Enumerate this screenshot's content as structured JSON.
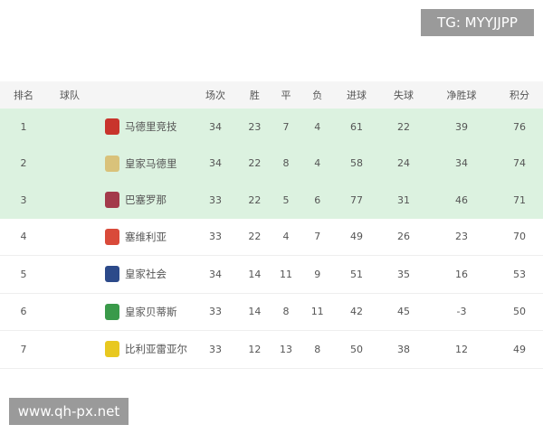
{
  "watermarks": {
    "top": "TG: MYYJJPP",
    "bottom": "www.qh-px.net"
  },
  "headers": [
    "排名",
    "球队",
    "场次",
    "胜",
    "平",
    "负",
    "进球",
    "失球",
    "净胜球",
    "积分"
  ],
  "rows": [
    {
      "rank": "1",
      "team": "马德里竞技",
      "icon": "atletico-madrid-crest",
      "color": "#c8342c",
      "played": "34",
      "w": "23",
      "d": "7",
      "l": "4",
      "gf": "61",
      "ga": "22",
      "gd": "39",
      "pts": "76",
      "highlight": true
    },
    {
      "rank": "2",
      "team": "皇家马德里",
      "icon": "real-madrid-crest",
      "color": "#d9c27a",
      "played": "34",
      "w": "22",
      "d": "8",
      "l": "4",
      "gf": "58",
      "ga": "24",
      "gd": "34",
      "pts": "74",
      "highlight": true
    },
    {
      "rank": "3",
      "team": "巴塞罗那",
      "icon": "barcelona-crest",
      "color": "#a33a4a",
      "played": "33",
      "w": "22",
      "d": "5",
      "l": "6",
      "gf": "77",
      "ga": "31",
      "gd": "46",
      "pts": "71",
      "highlight": true
    },
    {
      "rank": "4",
      "team": "塞维利亚",
      "icon": "sevilla-crest",
      "color": "#d94a3a",
      "played": "33",
      "w": "22",
      "d": "4",
      "l": "7",
      "gf": "49",
      "ga": "26",
      "gd": "23",
      "pts": "70",
      "highlight": false
    },
    {
      "rank": "5",
      "team": "皇家社会",
      "icon": "real-sociedad-crest",
      "color": "#2c4a8a",
      "played": "34",
      "w": "14",
      "d": "11",
      "l": "9",
      "gf": "51",
      "ga": "35",
      "gd": "16",
      "pts": "53",
      "highlight": false
    },
    {
      "rank": "6",
      "team": "皇家贝蒂斯",
      "icon": "real-betis-crest",
      "color": "#3a9a4a",
      "played": "33",
      "w": "14",
      "d": "8",
      "l": "11",
      "gf": "42",
      "ga": "45",
      "gd": "-3",
      "pts": "50",
      "highlight": false
    },
    {
      "rank": "7",
      "team": "比利亚雷亚尔",
      "icon": "villarreal-crest",
      "color": "#e8c820",
      "played": "33",
      "w": "12",
      "d": "13",
      "l": "8",
      "gf": "50",
      "ga": "38",
      "gd": "12",
      "pts": "49",
      "highlight": false
    }
  ]
}
